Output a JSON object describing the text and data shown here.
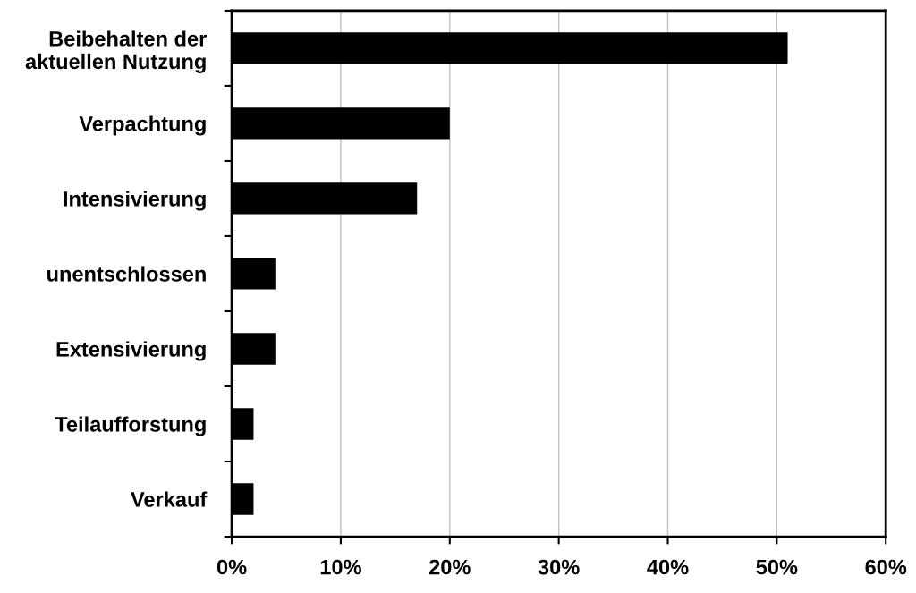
{
  "chart_data": {
    "type": "bar",
    "orientation": "horizontal",
    "categories": [
      "Beibehalten der\naktuellen Nutzung",
      "Verpachtung",
      "Intensivierung",
      "unentschlossen",
      "Extensivierung",
      "Teilaufforstung",
      "Verkauf"
    ],
    "values": [
      51,
      20,
      17,
      4,
      4,
      2,
      2
    ],
    "color": "#000000",
    "xlim": [
      0,
      60
    ],
    "xticks": [
      {
        "value": 0,
        "label": "0%"
      },
      {
        "value": 10,
        "label": "10%"
      },
      {
        "value": 20,
        "label": "20%"
      },
      {
        "value": 30,
        "label": "30%"
      },
      {
        "value": 40,
        "label": "40%"
      },
      {
        "value": 50,
        "label": "50%"
      },
      {
        "value": 60,
        "label": "60%"
      }
    ],
    "grid": "x",
    "legend": false
  }
}
